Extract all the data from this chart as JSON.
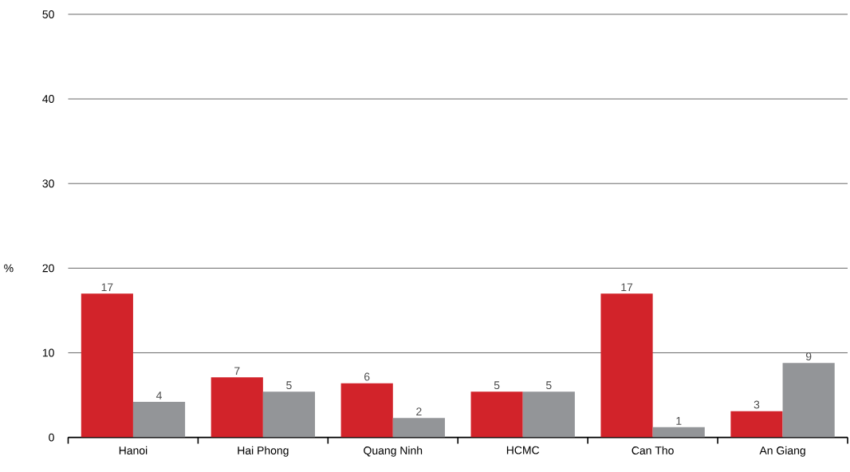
{
  "chart_data": {
    "type": "bar",
    "ylabel": "%",
    "categories": [
      "Hanoi",
      "Hai Phong",
      "Quang Ninh",
      "HCMC",
      "Can Tho",
      "An Giang"
    ],
    "series": [
      {
        "color": "#d2232a",
        "values": [
          17.0,
          7.1,
          6.4,
          5.4,
          17.0,
          3.1
        ],
        "value_labels": [
          "17",
          "7",
          "6",
          "5",
          "17",
          "3"
        ]
      },
      {
        "color": "#939598",
        "values": [
          4.2,
          5.4,
          2.3,
          5.4,
          1.2,
          8.8
        ],
        "value_labels": [
          "4",
          "5",
          "2",
          "5",
          "1",
          "9"
        ]
      }
    ],
    "ylim": [
      0,
      50
    ],
    "yticks": [
      0,
      10,
      20,
      30,
      40,
      50
    ],
    "grid": "y"
  }
}
